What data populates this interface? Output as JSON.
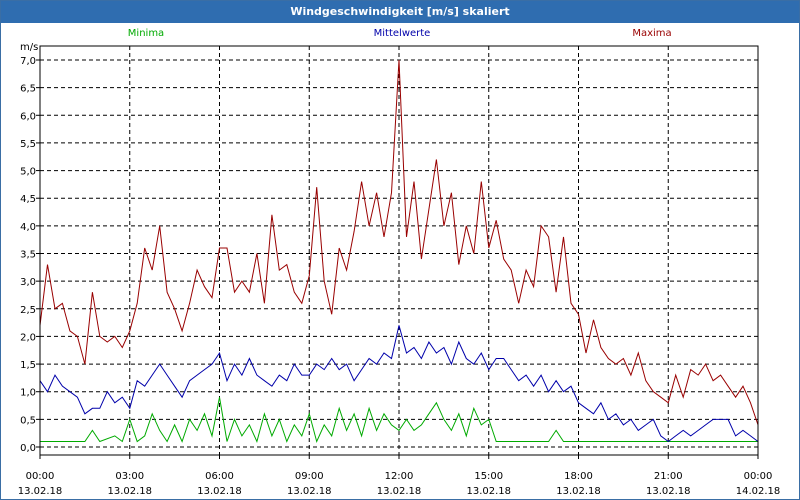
{
  "window": {
    "title": "Windgeschwindigkeit [m/s] skaliert"
  },
  "colors": {
    "minima": "#00aa00",
    "mittelwerte": "#0000aa",
    "maxima": "#990000",
    "grid": "#000000",
    "title_bar": "#2f6db0"
  },
  "chart_data": {
    "type": "line",
    "title": "Windgeschwindigkeit [m/s] skaliert",
    "ylabel": "m/s",
    "ylim": [
      0,
      7
    ],
    "yticks": [
      "0,0",
      "0,5",
      "1,0",
      "1,5",
      "2,0",
      "2,5",
      "3,0",
      "3,5",
      "4,0",
      "4,5",
      "5,0",
      "5,5",
      "6,0",
      "6,5",
      "7,0"
    ],
    "xlim_hours": [
      0,
      24
    ],
    "xticks": [
      {
        "time": "00:00",
        "date": "13.02.18"
      },
      {
        "time": "03:00",
        "date": "13.02.18"
      },
      {
        "time": "06:00",
        "date": "13.02.18"
      },
      {
        "time": "09:00",
        "date": "13.02.18"
      },
      {
        "time": "12:00",
        "date": "13.02.18"
      },
      {
        "time": "15:00",
        "date": "13.02.18"
      },
      {
        "time": "18:00",
        "date": "13.02.18"
      },
      {
        "time": "21:00",
        "date": "13.02.18"
      },
      {
        "time": "00:00",
        "date": "14.02.18"
      }
    ],
    "grid": true,
    "legend_position": "top",
    "series": [
      {
        "name": "Minima",
        "color": "#00aa00",
        "x": [
          0,
          0.5,
          1,
          1.5,
          1.75,
          2,
          2.5,
          2.75,
          3,
          3.25,
          3.5,
          3.75,
          4,
          4.25,
          4.5,
          4.75,
          5,
          5.25,
          5.5,
          5.75,
          6,
          6.25,
          6.5,
          6.75,
          7,
          7.25,
          7.5,
          7.75,
          8,
          8.25,
          8.5,
          8.75,
          9,
          9.25,
          9.5,
          9.75,
          10,
          10.25,
          10.5,
          10.75,
          11,
          11.25,
          11.5,
          11.75,
          12,
          12.25,
          12.5,
          12.75,
          13,
          13.25,
          13.5,
          13.75,
          14,
          14.25,
          14.5,
          14.75,
          15,
          15.25,
          15.5,
          16,
          16.5,
          17,
          17.25,
          17.5,
          18,
          19,
          20,
          21,
          22,
          23,
          24
        ],
        "y": [
          0.1,
          0.1,
          0.1,
          0.1,
          0.3,
          0.1,
          0.2,
          0.1,
          0.5,
          0.1,
          0.2,
          0.6,
          0.3,
          0.1,
          0.4,
          0.1,
          0.5,
          0.3,
          0.6,
          0.2,
          0.9,
          0.1,
          0.5,
          0.2,
          0.4,
          0.1,
          0.6,
          0.2,
          0.5,
          0.1,
          0.4,
          0.2,
          0.6,
          0.1,
          0.4,
          0.2,
          0.7,
          0.3,
          0.6,
          0.2,
          0.7,
          0.3,
          0.6,
          0.4,
          0.3,
          0.5,
          0.3,
          0.4,
          0.6,
          0.8,
          0.5,
          0.3,
          0.6,
          0.2,
          0.7,
          0.4,
          0.5,
          0.1,
          0.1,
          0.1,
          0.1,
          0.1,
          0.3,
          0.1,
          0.1,
          0.1,
          0.1,
          0.1,
          0.1,
          0.1,
          0.1
        ]
      },
      {
        "name": "Mittelwerte",
        "color": "#0000aa",
        "x": [
          0,
          0.25,
          0.5,
          0.75,
          1,
          1.25,
          1.5,
          1.75,
          2,
          2.25,
          2.5,
          2.75,
          3,
          3.25,
          3.5,
          3.75,
          4,
          4.25,
          4.5,
          4.75,
          5,
          5.25,
          5.5,
          5.75,
          6,
          6.25,
          6.5,
          6.75,
          7,
          7.25,
          7.5,
          7.75,
          8,
          8.25,
          8.5,
          8.75,
          9,
          9.25,
          9.5,
          9.75,
          10,
          10.25,
          10.5,
          10.75,
          11,
          11.25,
          11.5,
          11.75,
          12,
          12.25,
          12.5,
          12.75,
          13,
          13.25,
          13.5,
          13.75,
          14,
          14.25,
          14.5,
          14.75,
          15,
          15.25,
          15.5,
          15.75,
          16,
          16.25,
          16.5,
          16.75,
          17,
          17.25,
          17.5,
          17.75,
          18,
          18.25,
          18.5,
          18.75,
          19,
          19.25,
          19.5,
          19.75,
          20,
          20.25,
          20.5,
          20.75,
          21,
          21.25,
          21.5,
          21.75,
          22,
          22.25,
          22.5,
          22.75,
          23,
          23.25,
          23.5,
          23.75,
          24
        ],
        "y": [
          1.2,
          1.0,
          1.3,
          1.1,
          1.0,
          0.9,
          0.6,
          0.7,
          0.7,
          1.0,
          0.8,
          0.9,
          0.7,
          1.2,
          1.1,
          1.3,
          1.5,
          1.3,
          1.1,
          0.9,
          1.2,
          1.3,
          1.4,
          1.5,
          1.7,
          1.2,
          1.5,
          1.3,
          1.6,
          1.3,
          1.2,
          1.1,
          1.3,
          1.2,
          1.5,
          1.3,
          1.3,
          1.5,
          1.4,
          1.6,
          1.4,
          1.5,
          1.2,
          1.4,
          1.6,
          1.5,
          1.7,
          1.6,
          2.2,
          1.7,
          1.8,
          1.6,
          1.9,
          1.7,
          1.8,
          1.5,
          1.9,
          1.6,
          1.5,
          1.7,
          1.4,
          1.6,
          1.6,
          1.4,
          1.2,
          1.3,
          1.1,
          1.3,
          1.0,
          1.2,
          1.0,
          1.1,
          0.8,
          0.7,
          0.6,
          0.8,
          0.5,
          0.6,
          0.4,
          0.5,
          0.3,
          0.4,
          0.5,
          0.2,
          0.1,
          0.2,
          0.3,
          0.2,
          0.3,
          0.4,
          0.5,
          0.5,
          0.5,
          0.2,
          0.3,
          0.2,
          0.1
        ]
      },
      {
        "name": "Maxima",
        "color": "#990000",
        "x": [
          0,
          0.25,
          0.5,
          0.75,
          1,
          1.25,
          1.5,
          1.75,
          2,
          2.25,
          2.5,
          2.75,
          3,
          3.25,
          3.5,
          3.75,
          4,
          4.25,
          4.5,
          4.75,
          5,
          5.25,
          5.5,
          5.75,
          6,
          6.25,
          6.5,
          6.75,
          7,
          7.25,
          7.5,
          7.75,
          8,
          8.25,
          8.5,
          8.75,
          9,
          9.25,
          9.5,
          9.75,
          10,
          10.25,
          10.5,
          10.75,
          11,
          11.25,
          11.5,
          11.75,
          12,
          12.25,
          12.5,
          12.75,
          13,
          13.25,
          13.5,
          13.75,
          14,
          14.25,
          14.5,
          14.75,
          15,
          15.25,
          15.5,
          15.75,
          16,
          16.25,
          16.5,
          16.75,
          17,
          17.25,
          17.5,
          17.75,
          18,
          18.25,
          18.5,
          18.75,
          19,
          19.25,
          19.5,
          19.75,
          20,
          20.25,
          20.5,
          20.75,
          21,
          21.25,
          21.5,
          21.75,
          22,
          22.25,
          22.5,
          22.75,
          23,
          23.25,
          23.5,
          23.75,
          24
        ],
        "y": [
          2.2,
          3.3,
          2.5,
          2.6,
          2.1,
          2.0,
          1.5,
          2.8,
          2.0,
          1.9,
          2.0,
          1.8,
          2.1,
          2.6,
          3.6,
          3.2,
          4.0,
          2.8,
          2.5,
          2.1,
          2.6,
          3.2,
          2.9,
          2.7,
          3.6,
          3.6,
          2.8,
          3.0,
          2.8,
          3.5,
          2.6,
          4.2,
          3.2,
          3.3,
          2.8,
          2.6,
          3.1,
          4.7,
          3.0,
          2.4,
          3.6,
          3.2,
          3.9,
          4.8,
          4.0,
          4.6,
          3.8,
          4.6,
          7.0,
          3.8,
          4.8,
          3.4,
          4.3,
          5.2,
          4.0,
          4.6,
          3.3,
          4.0,
          3.5,
          4.8,
          3.6,
          4.1,
          3.4,
          3.2,
          2.6,
          3.2,
          2.9,
          4.0,
          3.8,
          2.8,
          3.8,
          2.6,
          2.4,
          1.7,
          2.3,
          1.8,
          1.6,
          1.5,
          1.6,
          1.3,
          1.7,
          1.2,
          1.0,
          0.9,
          0.8,
          1.3,
          0.9,
          1.4,
          1.3,
          1.5,
          1.2,
          1.3,
          1.1,
          0.9,
          1.1,
          0.8,
          0.4
        ]
      }
    ]
  }
}
